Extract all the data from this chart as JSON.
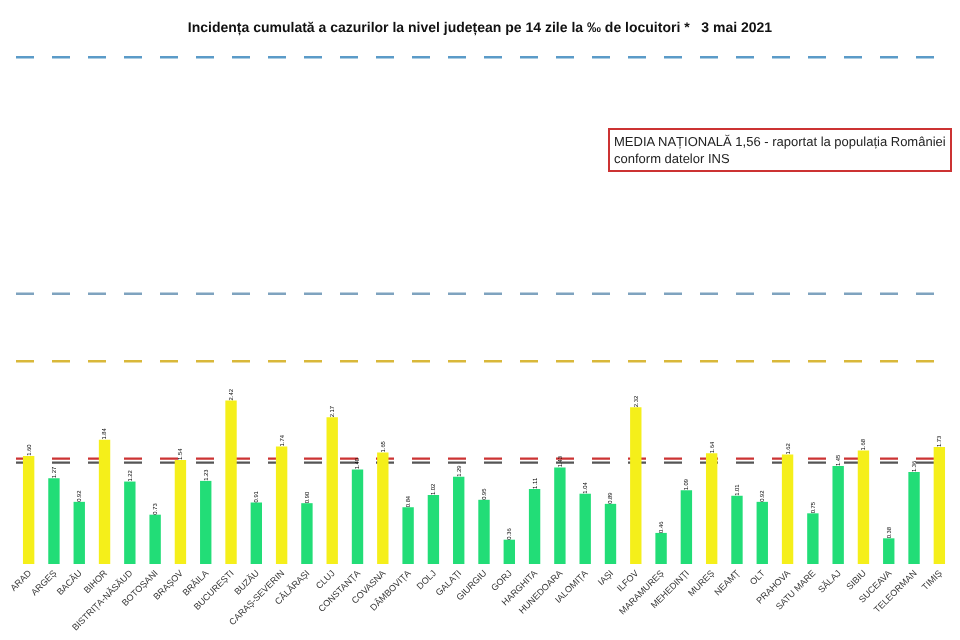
{
  "chart_data": {
    "type": "bar",
    "title": "Incidența cumulată a cazurilor la nivel județean pe 14 zile la ‰ de locuitori *   3 mai 2021",
    "categories": [
      "ARAD",
      "ARGEȘ",
      "BACĂU",
      "BIHOR",
      "BISTRIȚA-NĂSĂUD",
      "BOTOȘANI",
      "BRAȘOV",
      "BRĂILA",
      "BUCUREȘTI",
      "BUZĂU",
      "CARAȘ-SEVERIN",
      "CĂLĂRAȘI",
      "CLUJ",
      "CONSTANȚA",
      "COVASNA",
      "DÂMBOVIȚA",
      "DOLJ",
      "GALAȚI",
      "GIURGIU",
      "GORJ",
      "HARGHITA",
      "HUNEDOARA",
      "IALOMIȚA",
      "IAȘI",
      "ILFOV",
      "MARAMUREȘ",
      "MEHEDINȚI",
      "MUREȘ",
      "NEAMȚ",
      "OLT",
      "PRAHOVA",
      "SATU MARE",
      "SĂLAJ",
      "SIBIU",
      "SUCEAVA",
      "TELEORMAN",
      "TIMIȘ"
    ],
    "values": [
      1.6,
      1.27,
      0.92,
      1.84,
      1.22,
      0.73,
      1.54,
      1.23,
      2.42,
      0.91,
      1.74,
      0.9,
      2.17,
      1.4,
      1.65,
      0.84,
      1.02,
      1.29,
      0.95,
      0.36,
      1.11,
      1.43,
      1.04,
      0.89,
      2.32,
      0.46,
      1.09,
      1.64,
      1.01,
      0.92,
      1.62,
      0.75,
      1.45,
      1.68,
      0.38,
      1.36,
      1.73
    ],
    "colors": [
      "#f5ef1a",
      "#22dd77",
      "#22dd77",
      "#f5ef1a",
      "#22dd77",
      "#22dd77",
      "#f5ef1a",
      "#22dd77",
      "#f5ef1a",
      "#22dd77",
      "#f5ef1a",
      "#22dd77",
      "#f5ef1a",
      "#22dd77",
      "#f5ef1a",
      "#22dd77",
      "#22dd77",
      "#22dd77",
      "#22dd77",
      "#22dd77",
      "#22dd77",
      "#22dd77",
      "#22dd77",
      "#22dd77",
      "#f5ef1a",
      "#22dd77",
      "#22dd77",
      "#f5ef1a",
      "#22dd77",
      "#22dd77",
      "#f5ef1a",
      "#22dd77",
      "#22dd77",
      "#f5ef1a",
      "#22dd77",
      "#22dd77",
      "#f5ef1a"
    ],
    "value_labels": [
      "1.60",
      "1.27",
      "0.92",
      "1.84",
      "1.22",
      "0.73",
      "1.54",
      "1.23",
      "2.42",
      "0.91",
      "1.74",
      "0.90",
      "2.17",
      "1.40",
      "1.65",
      "0.84",
      "1.02",
      "1.29",
      "0.95",
      "0.36",
      "1.11",
      "1.43",
      "1.04",
      "0.89",
      "2.32",
      "0.46",
      "1.09",
      "1.64",
      "1.01",
      "0.92",
      "1.62",
      "0.75",
      "1.45",
      "1.68",
      "0.38",
      "1.36",
      "1.73"
    ],
    "tick_labels": "x",
    "ref_lines": [
      {
        "axis": "y",
        "value": 1.5,
        "color": "#555555",
        "line_style": "dashed"
      },
      {
        "axis": "y",
        "value": 1.56,
        "color": "#cc3333",
        "line_style": "dashed"
      },
      {
        "axis": "y",
        "value": 3,
        "color": "#d9b83a",
        "line_style": "dashed"
      },
      {
        "axis": "y",
        "value": 4,
        "color": "#7fa3bf",
        "line_style": "dashed"
      },
      {
        "axis": "y",
        "value": 7.5,
        "color": "#5b9bc8",
        "line_style": "dashed"
      }
    ],
    "annotations": [
      "MEDIA NAȚIONALĂ 1,56 - raportat la populația României\nconform datelor INS"
    ]
  }
}
